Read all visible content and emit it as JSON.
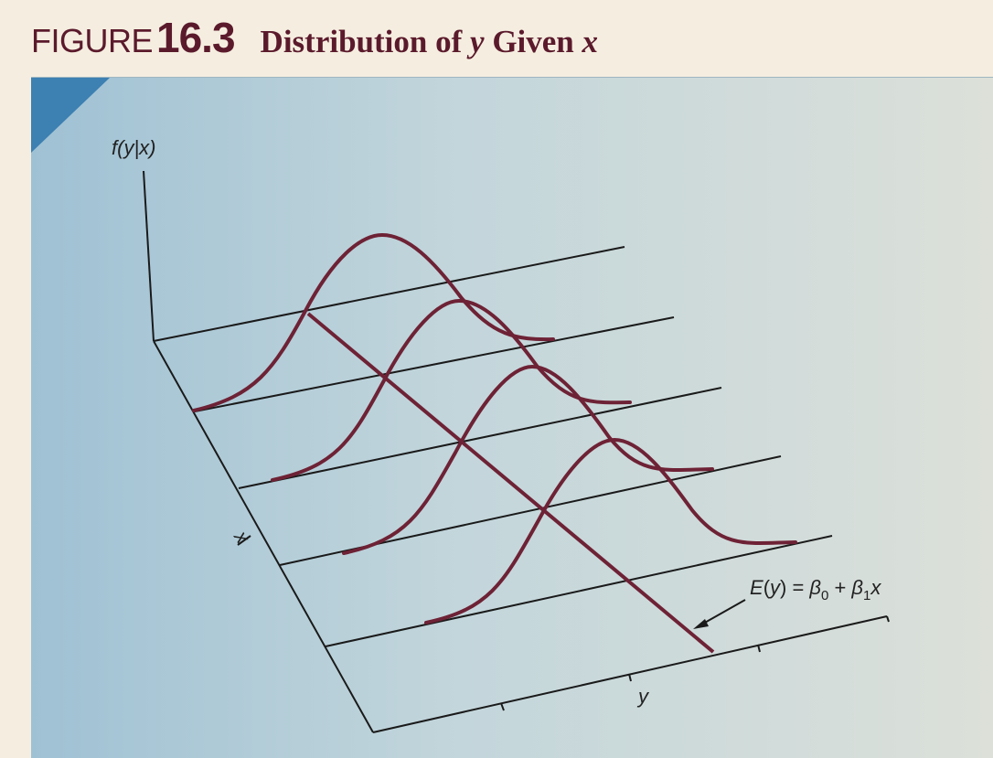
{
  "header": {
    "figure_word": "FIGURE",
    "figure_number": "16.3",
    "title_pre": "Distribution of ",
    "title_var1": "y",
    "title_mid": " Given ",
    "title_var2": "x"
  },
  "diagram": {
    "vertical_axis_label": "f(y|x)",
    "depth_axis_label": "x",
    "horizontal_axis_label": "y",
    "regression_label": "E(y) = β0 + β1x"
  },
  "colors": {
    "curve": "#6e2235",
    "axis": "#1a1a1a",
    "title": "#5b1a2c",
    "corner": "#3d80b2"
  }
}
